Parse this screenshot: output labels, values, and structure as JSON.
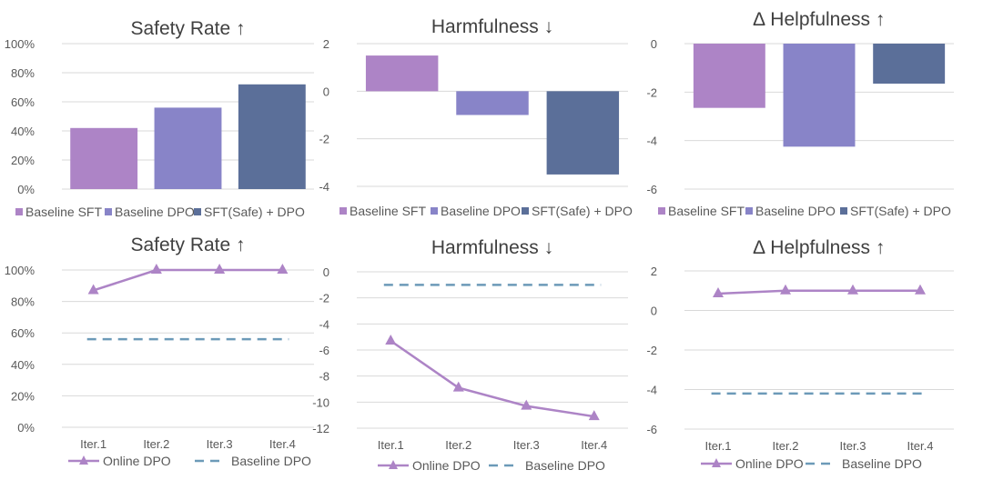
{
  "colors": {
    "baseline_sft": "#ad84c6",
    "baseline_dpo": "#8884c8",
    "sft_safe_dpo": "#5b6f99",
    "online_dpo": "#ad84c6",
    "baseline_dpo_line": "#6c9ab8",
    "grid": "#d9d9d9",
    "text": "#595959",
    "title": "#404040"
  },
  "chart_data": [
    {
      "id": "bar-safety",
      "type": "bar",
      "title": "Safety Rate ↑",
      "categories": [
        "Baseline SFT",
        "Baseline DPO",
        "SFT(Safe) + DPO"
      ],
      "values": [
        42,
        56,
        72
      ],
      "ylim": [
        0,
        100
      ],
      "yticks": [
        0,
        20,
        40,
        60,
        80,
        100
      ],
      "ytick_labels": [
        "0%",
        "20%",
        "40%",
        "60%",
        "80%",
        "100%"
      ],
      "legend": [
        "Baseline SFT",
        "Baseline DPO",
        "SFT(Safe) + DPO"
      ],
      "legend_position": "bottom"
    },
    {
      "id": "bar-harm",
      "type": "bar",
      "title": "Harmfulness ↓",
      "categories": [
        "Baseline SFT",
        "Baseline DPO",
        "SFT(Safe) + DPO"
      ],
      "values": [
        1.5,
        -1.0,
        -3.5
      ],
      "ylim": [
        -4,
        2
      ],
      "yticks": [
        -4,
        -2,
        0,
        2
      ],
      "ytick_labels": [
        "-4",
        "-2",
        "0",
        "2"
      ],
      "legend": [
        "Baseline SFT",
        "Baseline DPO",
        "SFT(Safe) + DPO"
      ],
      "legend_position": "bottom"
    },
    {
      "id": "bar-help",
      "type": "bar",
      "title": "∆ Helpfulness ↑",
      "categories": [
        "Baseline SFT",
        "Baseline DPO",
        "SFT(Safe) + DPO"
      ],
      "values": [
        -2.65,
        -4.25,
        -1.65
      ],
      "ylim": [
        -6,
        0
      ],
      "yticks": [
        -6,
        -4,
        -2,
        0
      ],
      "ytick_labels": [
        "-6",
        "-4",
        "-2",
        "0"
      ],
      "legend": [
        "Baseline SFT",
        "Baseline DPO",
        "SFT(Safe) + DPO"
      ],
      "legend_position": "bottom"
    },
    {
      "id": "line-safety",
      "type": "line",
      "title": "Safety Rate ↑",
      "categories": [
        "Iter.1",
        "Iter.2",
        "Iter.3",
        "Iter.4"
      ],
      "series": [
        {
          "name": "Online DPO",
          "values": [
            87,
            100,
            100,
            100
          ],
          "style": "solid-triangle"
        },
        {
          "name": "Baseline DPO",
          "values": [
            56,
            56,
            56,
            56
          ],
          "style": "dashed"
        }
      ],
      "ylim": [
        0,
        100
      ],
      "yticks": [
        0,
        20,
        40,
        60,
        80,
        100
      ],
      "ytick_labels": [
        "0%",
        "20%",
        "40%",
        "60%",
        "80%",
        "100%"
      ],
      "legend_position": "bottom"
    },
    {
      "id": "line-harm",
      "type": "line",
      "title": "Harmfulness ↓",
      "categories": [
        "Iter.1",
        "Iter.2",
        "Iter.3",
        "Iter.4"
      ],
      "series": [
        {
          "name": "Online DPO",
          "values": [
            -5.3,
            -8.9,
            -10.3,
            -11.1
          ],
          "style": "solid-triangle"
        },
        {
          "name": "Baseline DPO",
          "values": [
            -1.0,
            -1.0,
            -1.0,
            -1.0
          ],
          "style": "dashed"
        }
      ],
      "ylim": [
        -12,
        0
      ],
      "yticks": [
        -12,
        -10,
        -8,
        -6,
        -4,
        -2,
        0
      ],
      "ytick_labels": [
        "-12",
        "-10",
        "-8",
        "-6",
        "-4",
        "-2",
        "0"
      ],
      "legend_position": "bottom"
    },
    {
      "id": "line-help",
      "type": "line",
      "title": "∆ Helpfulness ↑",
      "categories": [
        "Iter.1",
        "Iter.2",
        "Iter.3",
        "Iter.4"
      ],
      "series": [
        {
          "name": "Online DPO",
          "values": [
            0.85,
            1.0,
            1.0,
            1.0
          ],
          "style": "solid-triangle"
        },
        {
          "name": "Baseline DPO",
          "values": [
            -4.2,
            -4.2,
            -4.2,
            -4.2
          ],
          "style": "dashed"
        }
      ],
      "ylim": [
        -6,
        2
      ],
      "yticks": [
        -6,
        -4,
        -2,
        0,
        2
      ],
      "ytick_labels": [
        "-6",
        "-4",
        "-2",
        "0",
        "2"
      ],
      "legend_position": "bottom"
    }
  ]
}
